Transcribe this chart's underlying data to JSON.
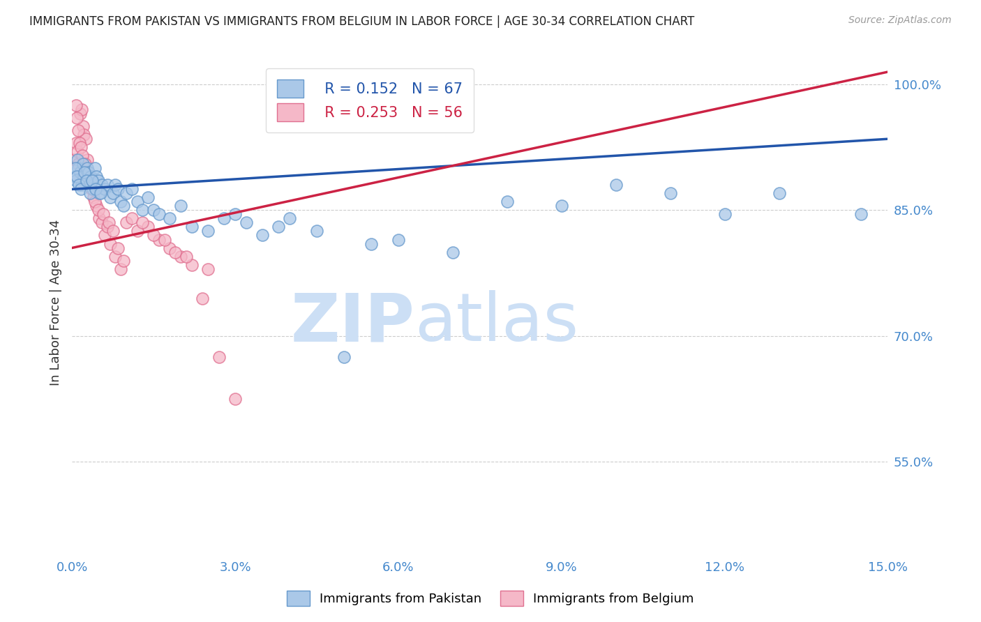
{
  "title": "IMMIGRANTS FROM PAKISTAN VS IMMIGRANTS FROM BELGIUM IN LABOR FORCE | AGE 30-34 CORRELATION CHART",
  "source": "Source: ZipAtlas.com",
  "ylabel": "In Labor Force | Age 30-34",
  "xmin": 0.0,
  "xmax": 15.0,
  "ymin": 44.0,
  "ymax": 104.0,
  "yticks": [
    55.0,
    70.0,
    85.0,
    100.0
  ],
  "ytick_labels": [
    "55.0%",
    "70.0%",
    "85.0%",
    "100.0%"
  ],
  "xtick_vals": [
    0,
    3,
    6,
    9,
    12,
    15
  ],
  "xtick_labels": [
    "0.0%",
    "3.0%",
    "6.0%",
    "9.0%",
    "12.0%",
    "15.0%"
  ],
  "pakistan_color": "#aac8e8",
  "pakistan_edge": "#6699cc",
  "belgium_color": "#f5b8c8",
  "belgium_edge": "#e07090",
  "trend_pakistan_color": "#2255aa",
  "trend_belgium_color": "#cc2244",
  "pakistan_R": 0.152,
  "pakistan_N": 67,
  "belgium_R": 0.253,
  "belgium_N": 56,
  "title_color": "#222222",
  "axis_label_color": "#4488cc",
  "background_color": "#ffffff",
  "watermark_color": "#ccdff5",
  "pakistan_x": [
    0.05,
    0.08,
    0.1,
    0.12,
    0.15,
    0.18,
    0.2,
    0.22,
    0.25,
    0.28,
    0.3,
    0.32,
    0.35,
    0.38,
    0.4,
    0.42,
    0.45,
    0.48,
    0.5,
    0.55,
    0.6,
    0.65,
    0.7,
    0.75,
    0.8,
    0.85,
    0.9,
    0.95,
    1.0,
    1.1,
    1.2,
    1.3,
    1.4,
    1.5,
    1.6,
    1.8,
    2.0,
    2.2,
    2.5,
    2.8,
    3.0,
    3.2,
    3.5,
    3.8,
    4.0,
    4.5,
    5.0,
    5.5,
    6.0,
    7.0,
    8.0,
    9.0,
    10.0,
    11.0,
    12.0,
    13.0,
    14.5,
    0.06,
    0.09,
    0.13,
    0.17,
    0.23,
    0.27,
    0.33,
    0.37,
    0.43,
    0.52
  ],
  "pakistan_y": [
    89.0,
    88.5,
    91.0,
    90.0,
    89.5,
    88.0,
    90.5,
    89.0,
    88.5,
    90.0,
    89.5,
    88.0,
    89.0,
    87.5,
    88.0,
    90.0,
    89.0,
    88.5,
    87.0,
    88.0,
    87.5,
    88.0,
    86.5,
    87.0,
    88.0,
    87.5,
    86.0,
    85.5,
    87.0,
    87.5,
    86.0,
    85.0,
    86.5,
    85.0,
    84.5,
    84.0,
    85.5,
    83.0,
    82.5,
    84.0,
    84.5,
    83.5,
    82.0,
    83.0,
    84.0,
    82.5,
    67.5,
    81.0,
    81.5,
    80.0,
    86.0,
    85.5,
    88.0,
    87.0,
    84.5,
    87.0,
    84.5,
    90.0,
    89.0,
    88.0,
    87.5,
    89.5,
    88.5,
    87.0,
    88.5,
    87.5,
    87.0
  ],
  "belgium_x": [
    0.05,
    0.08,
    0.1,
    0.12,
    0.15,
    0.18,
    0.2,
    0.22,
    0.25,
    0.28,
    0.3,
    0.33,
    0.36,
    0.4,
    0.45,
    0.5,
    0.55,
    0.6,
    0.65,
    0.7,
    0.8,
    0.9,
    1.0,
    1.2,
    1.4,
    1.6,
    1.8,
    2.0,
    2.2,
    2.5,
    0.07,
    0.09,
    0.11,
    0.14,
    0.16,
    0.19,
    0.24,
    0.27,
    0.32,
    0.38,
    0.42,
    0.48,
    0.58,
    0.68,
    0.75,
    0.85,
    0.95,
    1.1,
    1.3,
    1.5,
    1.7,
    1.9,
    2.1,
    2.4,
    2.7,
    3.0
  ],
  "belgium_y": [
    91.0,
    93.0,
    92.0,
    90.5,
    96.5,
    97.0,
    95.0,
    94.0,
    93.5,
    91.0,
    89.5,
    88.0,
    87.5,
    86.5,
    85.5,
    84.0,
    83.5,
    82.0,
    83.0,
    81.0,
    79.5,
    78.0,
    83.5,
    82.5,
    83.0,
    81.5,
    80.5,
    79.5,
    78.5,
    78.0,
    97.5,
    96.0,
    94.5,
    93.0,
    92.5,
    91.5,
    90.5,
    89.5,
    89.0,
    87.5,
    86.0,
    85.0,
    84.5,
    83.5,
    82.5,
    80.5,
    79.0,
    84.0,
    83.5,
    82.0,
    81.5,
    80.0,
    79.5,
    74.5,
    67.5,
    62.5
  ],
  "trend_pakistan_x0": 0.0,
  "trend_pakistan_x1": 15.0,
  "trend_pakistan_y0": 87.5,
  "trend_pakistan_y1": 93.5,
  "trend_belgium_x0": 0.0,
  "trend_belgium_x1": 15.0,
  "trend_belgium_y0": 80.5,
  "trend_belgium_y1": 101.5
}
